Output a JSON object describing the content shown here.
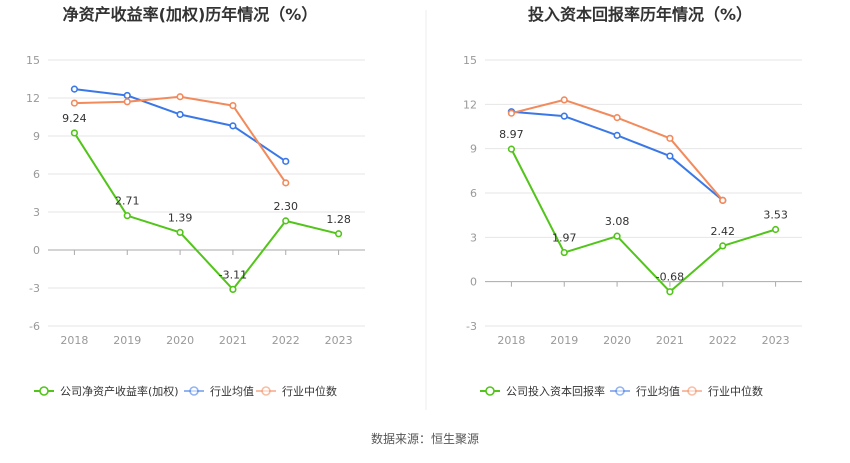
{
  "source_note": "数据来源：恒生聚源",
  "chart_data": [
    {
      "type": "line",
      "title": "净资产收益率(加权)历年情况（%）",
      "categories": [
        "2018",
        "2019",
        "2020",
        "2021",
        "2022",
        "2023"
      ],
      "ylim": [
        -6,
        15
      ],
      "yticks": [
        -6,
        -3,
        0,
        3,
        6,
        9,
        12,
        15
      ],
      "series": [
        {
          "name": "公司净资产收益率(加权)",
          "color": "#52c41a",
          "values": [
            9.24,
            2.71,
            1.39,
            -3.11,
            2.3,
            1.28
          ],
          "labels": [
            "9.24",
            "2.71",
            "1.39",
            "-3.11",
            "2.30",
            "1.28"
          ]
        },
        {
          "name": "行业均值",
          "color": "#3b78e7",
          "values": [
            12.7,
            12.2,
            10.7,
            9.8,
            7.0,
            null
          ]
        },
        {
          "name": "行业中位数",
          "color": "#f28a5c",
          "values": [
            11.6,
            11.7,
            12.1,
            11.4,
            5.3,
            null
          ]
        }
      ]
    },
    {
      "type": "line",
      "title": "投入资本回报率历年情况（%）",
      "categories": [
        "2018",
        "2019",
        "2020",
        "2021",
        "2022",
        "2023"
      ],
      "ylim": [
        -3,
        15
      ],
      "yticks": [
        -3,
        0,
        3,
        6,
        9,
        12,
        15
      ],
      "series": [
        {
          "name": "公司投入资本回报率",
          "color": "#52c41a",
          "values": [
            8.97,
            1.97,
            3.08,
            -0.68,
            2.42,
            3.53
          ],
          "labels": [
            "8.97",
            "1.97",
            "3.08",
            "-0.68",
            "2.42",
            "3.53"
          ]
        },
        {
          "name": "行业均值",
          "color": "#3b78e7",
          "values": [
            11.5,
            11.2,
            9.9,
            8.5,
            5.5,
            null
          ]
        },
        {
          "name": "行业中位数",
          "color": "#f28a5c",
          "values": [
            11.4,
            12.3,
            11.1,
            9.7,
            5.5,
            null
          ]
        }
      ]
    }
  ]
}
